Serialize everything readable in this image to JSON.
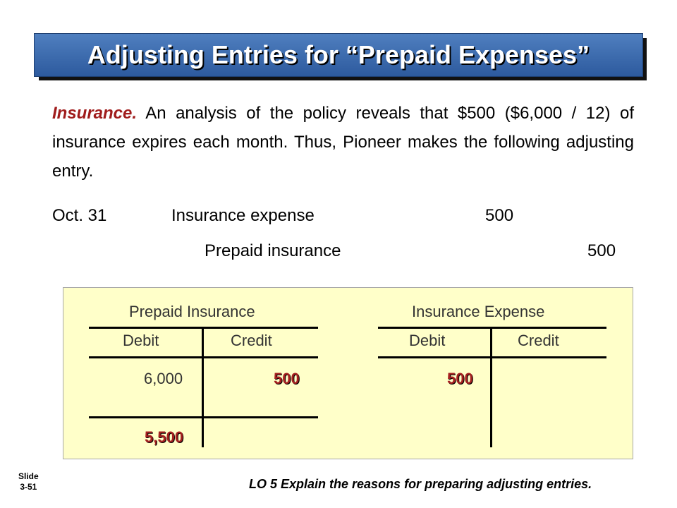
{
  "title": "Adjusting Entries for “Prepaid Expenses”",
  "paragraph": {
    "lead": "Insurance.",
    "body": " An analysis of the policy reveals that $500 ($6,000 / 12) of insurance expires each month.  Thus, Pioneer makes the following adjusting entry."
  },
  "journal_entry": {
    "date": "Oct. 31",
    "debit_account": "Insurance expense",
    "debit_amount": "500",
    "credit_account": "Prepaid insurance",
    "credit_amount": "500"
  },
  "t_accounts": [
    {
      "name": "Prepaid Insurance",
      "debit_label": "Debit",
      "credit_label": "Credit",
      "debit_entry": "6,000",
      "credit_entry": "500",
      "balance": "5,500"
    },
    {
      "name": "Insurance Expense",
      "debit_label": "Debit",
      "credit_label": "Credit",
      "debit_entry": "500"
    }
  ],
  "slide": {
    "label": "Slide",
    "number": "3-51"
  },
  "learning_objective": "LO 5  Explain the reasons for preparing adjusting entries.",
  "colors": {
    "title_bar": "#3b6aad",
    "ledger_background": "#ffffc9",
    "highlight_red": "#a52020"
  }
}
